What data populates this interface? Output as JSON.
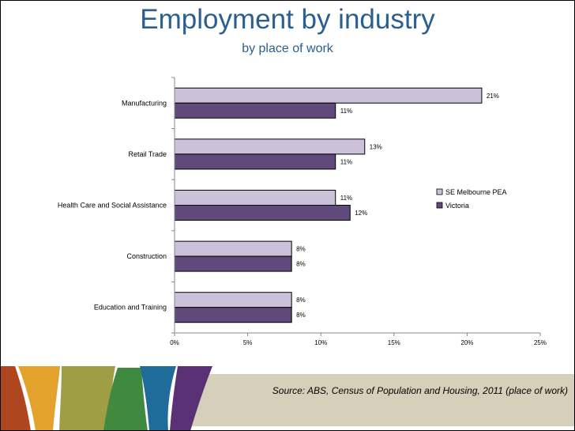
{
  "slide": {
    "title": "Employment by industry",
    "subtitle": "by place of work",
    "source": "Source:  ABS, Census of Population and Housing, 2011 (place of work)"
  },
  "chart_data": {
    "type": "bar",
    "orientation": "horizontal",
    "categories": [
      "Manufacturing",
      "Retail Trade",
      "Health Care and Social Assistance",
      "Construction",
      "Education and Training"
    ],
    "series": [
      {
        "name": "SE Melbourne PEA",
        "color": "#ccc0da",
        "values": [
          21,
          13,
          11,
          8,
          8
        ],
        "labels": [
          "21%",
          "13%",
          "11%",
          "8%",
          "8%"
        ]
      },
      {
        "name": "Victoria",
        "color": "#604a7b",
        "values": [
          11,
          11,
          12,
          8,
          8
        ],
        "labels": [
          "11%",
          "11%",
          "12%",
          "8%",
          "8%"
        ]
      }
    ],
    "xlim": [
      0,
      25
    ],
    "xticks": [
      0,
      5,
      10,
      15,
      20,
      25
    ],
    "xtick_labels": [
      "0%",
      "5%",
      "10%",
      "15%",
      "20%",
      "25%"
    ],
    "grid": false,
    "legend_position": "right",
    "xlabel": "",
    "ylabel": ""
  },
  "colors": {
    "title": "#2a5f8f",
    "footer_band": "#d6d0ba",
    "stripes": [
      "#b0461f",
      "#e2a22c",
      "#9f9e44",
      "#3f8a3f",
      "#1f6c9a",
      "#5b3175"
    ]
  }
}
